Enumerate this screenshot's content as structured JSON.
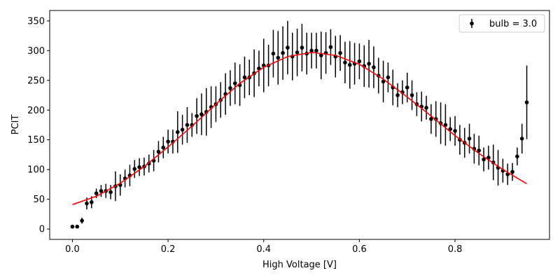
{
  "chart_data": {
    "type": "scatter",
    "title": "",
    "xlabel": "High Voltage [V]",
    "ylabel": "PCIT",
    "xlim": [
      -0.0475,
      0.9975
    ],
    "ylim": [
      -17.5,
      367.5
    ],
    "grid": false,
    "legend_position": "top-right",
    "x_ticks": [
      0.0,
      0.2,
      0.4,
      0.6,
      0.8
    ],
    "x_tick_labels": [
      "0.0",
      "0.2",
      "0.4",
      "0.6",
      "0.8"
    ],
    "y_ticks": [
      0,
      50,
      100,
      150,
      200,
      250,
      300,
      350
    ],
    "y_tick_labels": [
      "0",
      "50",
      "100",
      "150",
      "200",
      "250",
      "300",
      "350"
    ],
    "series": [
      {
        "name": "bulb = 3.0",
        "color": "#000000",
        "marker": "circle",
        "x": [
          0.0,
          0.01,
          0.02,
          0.03,
          0.04,
          0.05,
          0.06,
          0.07,
          0.08,
          0.09,
          0.1,
          0.11,
          0.12,
          0.13,
          0.14,
          0.15,
          0.16,
          0.17,
          0.18,
          0.19,
          0.2,
          0.21,
          0.22,
          0.23,
          0.24,
          0.25,
          0.26,
          0.27,
          0.28,
          0.29,
          0.3,
          0.31,
          0.32,
          0.33,
          0.34,
          0.35,
          0.36,
          0.37,
          0.38,
          0.39,
          0.4,
          0.41,
          0.42,
          0.43,
          0.44,
          0.45,
          0.46,
          0.47,
          0.48,
          0.49,
          0.5,
          0.51,
          0.52,
          0.53,
          0.54,
          0.55,
          0.56,
          0.57,
          0.58,
          0.59,
          0.6,
          0.61,
          0.62,
          0.63,
          0.64,
          0.65,
          0.66,
          0.67,
          0.68,
          0.69,
          0.7,
          0.71,
          0.72,
          0.73,
          0.74,
          0.75,
          0.76,
          0.77,
          0.78,
          0.79,
          0.8,
          0.81,
          0.82,
          0.83,
          0.84,
          0.85,
          0.86,
          0.87,
          0.88,
          0.89,
          0.9,
          0.91,
          0.92,
          0.93,
          0.94,
          0.95
        ],
        "y": [
          4,
          4,
          14,
          43,
          45,
          60,
          64,
          64,
          62,
          72,
          74,
          85,
          90,
          101,
          104,
          105,
          110,
          115,
          130,
          137,
          147,
          147,
          163,
          167,
          175,
          175,
          190,
          193,
          197,
          205,
          210,
          217,
          227,
          237,
          245,
          242,
          255,
          255,
          262,
          270,
          275,
          275,
          295,
          288,
          296,
          305,
          290,
          297,
          305,
          295,
          300,
          300,
          292,
          296,
          306,
          290,
          296,
          280,
          276,
          278,
          282,
          274,
          278,
          272,
          258,
          248,
          255,
          238,
          225,
          230,
          238,
          225,
          210,
          206,
          204,
          185,
          185,
          178,
          175,
          168,
          165,
          150,
          145,
          152,
          135,
          132,
          117,
          120,
          112,
          103,
          98,
          92,
          96,
          122,
          152,
          213
        ],
        "err": [
          2,
          2,
          5,
          10,
          10,
          8,
          10,
          12,
          12,
          25,
          18,
          15,
          18,
          15,
          15,
          15,
          15,
          18,
          18,
          18,
          20,
          20,
          35,
          25,
          30,
          20,
          30,
          35,
          40,
          35,
          30,
          30,
          35,
          30,
          35,
          35,
          35,
          30,
          40,
          30,
          45,
          35,
          40,
          45,
          45,
          45,
          40,
          40,
          40,
          35,
          30,
          30,
          40,
          35,
          30,
          35,
          30,
          35,
          40,
          35,
          30,
          35,
          40,
          35,
          30,
          35,
          25,
          30,
          20,
          20,
          25,
          25,
          20,
          25,
          20,
          25,
          30,
          35,
          35,
          20,
          25,
          25,
          25,
          25,
          25,
          25,
          20,
          20,
          30,
          30,
          20,
          18,
          15,
          15,
          25,
          62
        ]
      },
      {
        "name": "",
        "type": "line",
        "color": "#ff0000",
        "x": [
          0.0,
          0.05,
          0.1,
          0.15,
          0.2,
          0.25,
          0.3,
          0.35,
          0.4,
          0.45,
          0.5,
          0.55,
          0.6,
          0.65,
          0.7,
          0.75,
          0.8,
          0.85,
          0.9,
          0.95
        ],
        "y": [
          41,
          55,
          77,
          105,
          138,
          173,
          210,
          245,
          272,
          290,
          297,
          292,
          277,
          252,
          222,
          190,
          157,
          127,
          100,
          76
        ]
      }
    ]
  }
}
